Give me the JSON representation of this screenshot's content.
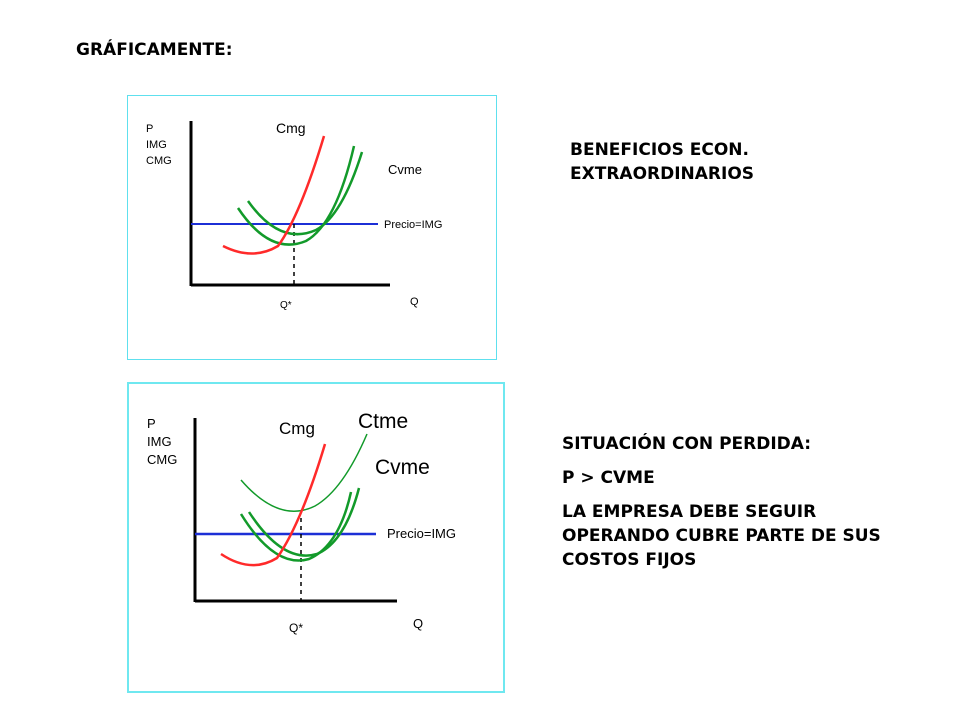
{
  "heading": "GRÁFICAMENTE:",
  "panel_top": {
    "text_line1": "BENEFICIOS ECON.",
    "text_line2": "EXTRAORDINARIOS",
    "graph": {
      "y_label_1": "P",
      "y_label_2": "IMG",
      "y_label_3": "CMG",
      "curve_cmg": "Cmg",
      "curve_cvme": "Cvme",
      "line_price": "Precio=IMG",
      "q_star": "Q*",
      "q_axis": "Q"
    }
  },
  "panel_bottom": {
    "text_line1": "SITUACIÓN CON PERDIDA:",
    "text_line2": "P > CVME",
    "text_line3": "LA EMPRESA DEBE SEGUIR OPERANDO CUBRE PARTE DE SUS COSTOS FIJOS",
    "graph": {
      "y_label_1": "P",
      "y_label_2": "IMG",
      "y_label_3": "CMG",
      "curve_cmg": "Cmg",
      "curve_ctme": "Ctme",
      "curve_cvme": "Cvme",
      "line_price": "Precio=IMG",
      "q_star": "Q*",
      "q_axis": "Q"
    }
  },
  "colors": {
    "cmg": "#ff2a2a",
    "cost_curves": "#129a2a",
    "price": "#1c2fd6",
    "axis": "#000000",
    "frame": "#5ee0ee"
  }
}
